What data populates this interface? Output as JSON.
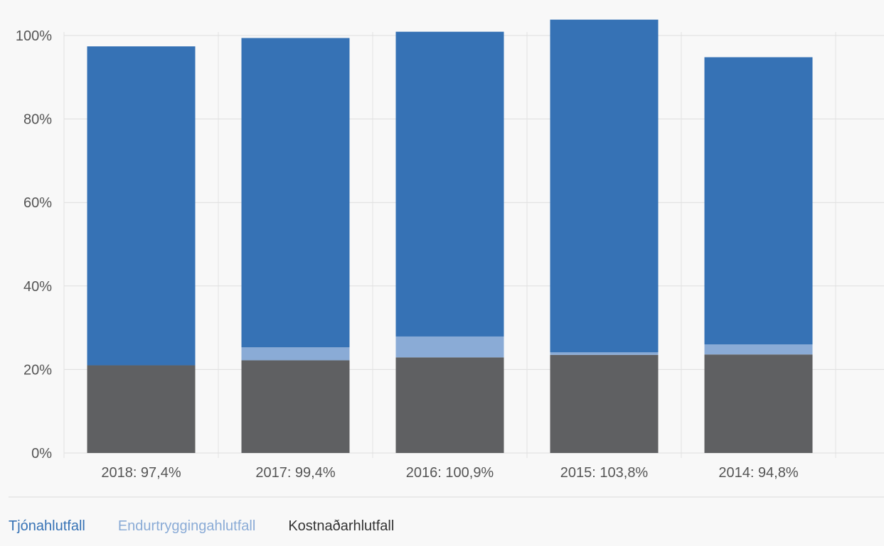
{
  "chart_data": {
    "type": "bar",
    "stacked": true,
    "categories": [
      "2018: 97,4%",
      "2017: 99,4%",
      "2016: 100,9%",
      "2015: 103,8%",
      "2014: 94,8%"
    ],
    "series": [
      {
        "name": "Kostnaðarhlutfall",
        "color": "#5f6062",
        "values": [
          21.0,
          22.2,
          22.9,
          23.5,
          23.6
        ]
      },
      {
        "name": "Endurtryggingahlutfall",
        "color": "#8aabd6",
        "values": [
          0.0,
          3.1,
          5.0,
          0.6,
          2.4
        ]
      },
      {
        "name": "Tjónahlutfall",
        "color": "#3672b5",
        "values": [
          76.4,
          74.1,
          73.0,
          79.7,
          68.8
        ]
      }
    ],
    "ylim": [
      0,
      100
    ],
    "yticks": [
      0,
      20,
      40,
      60,
      80,
      100
    ],
    "ytick_labels": [
      "0%",
      "20%",
      "40%",
      "60%",
      "80%",
      "100%"
    ],
    "grid": true,
    "legend_position": "bottom-left",
    "xlabel": "",
    "ylabel": ""
  },
  "legend": {
    "items": [
      {
        "label": "Tjónahlutfall",
        "color": "#3672b5"
      },
      {
        "label": "Endurtryggingahlutfall",
        "color": "#8aabd6"
      },
      {
        "label": "Kostnaðarhlutfall",
        "color": "#333333"
      }
    ]
  }
}
